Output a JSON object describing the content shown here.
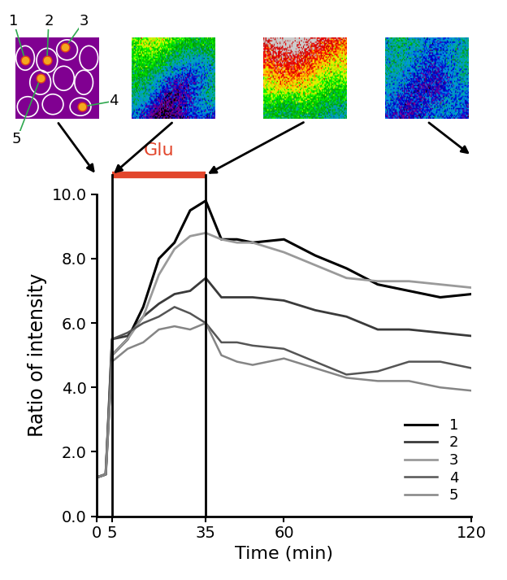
{
  "chart_data": {
    "type": "line",
    "x_label": "Time (min)",
    "y_label": "Ratio of intensity",
    "x": [
      0,
      3,
      5,
      10,
      15,
      20,
      25,
      30,
      35,
      40,
      45,
      50,
      60,
      70,
      80,
      90,
      100,
      110,
      120
    ],
    "xlim": [
      0,
      120
    ],
    "xticks": [
      0,
      5,
      35,
      60,
      120
    ],
    "ylim": [
      0,
      10
    ],
    "yticks": [
      {
        "value": 0,
        "label": "0.0"
      },
      {
        "value": 2,
        "label": "2.0"
      },
      {
        "value": 4,
        "label": "4.0"
      },
      {
        "value": 6,
        "label": "6.0"
      },
      {
        "value": 8,
        "label": "8.0"
      },
      {
        "value": 10,
        "label": "10.0"
      }
    ],
    "legend": "lower right",
    "treatment": {
      "label": "Glu",
      "start": 5,
      "end": 35,
      "color": "#e2462c"
    },
    "image_labels": [
      "1",
      "2",
      "3",
      "4",
      "5"
    ],
    "series": [
      {
        "name": "1",
        "color": "#000000",
        "line_style": "solid",
        "values": [
          1.2,
          1.3,
          5.0,
          5.5,
          6.5,
          8.0,
          8.5,
          9.5,
          9.8,
          8.6,
          8.6,
          8.5,
          8.6,
          8.1,
          7.7,
          7.2,
          7.0,
          6.8,
          6.9
        ]
      },
      {
        "name": "2",
        "color": "#3a3a3a",
        "line_style": "solid",
        "values": [
          1.2,
          1.3,
          5.5,
          5.6,
          6.2,
          6.6,
          6.9,
          7.0,
          7.4,
          6.8,
          6.8,
          6.8,
          6.7,
          6.4,
          6.2,
          5.8,
          5.8,
          5.7,
          5.6
        ]
      },
      {
        "name": "3",
        "color": "#9a9a9a",
        "line_style": "solid",
        "values": [
          1.2,
          1.3,
          5.0,
          5.5,
          6.2,
          7.5,
          8.3,
          8.7,
          8.8,
          8.6,
          8.5,
          8.5,
          8.2,
          7.8,
          7.4,
          7.3,
          7.3,
          7.2,
          7.1
        ]
      },
      {
        "name": "4",
        "color": "#555555",
        "line_style": "solid",
        "values": [
          1.2,
          1.3,
          5.5,
          5.7,
          6.0,
          6.2,
          6.5,
          6.3,
          6.0,
          5.4,
          5.4,
          5.3,
          5.2,
          4.8,
          4.4,
          4.5,
          4.8,
          4.8,
          4.6
        ]
      },
      {
        "name": "5",
        "color": "#858585",
        "line_style": "solid",
        "values": [
          1.2,
          1.3,
          4.8,
          5.2,
          5.4,
          5.8,
          5.9,
          5.8,
          6.0,
          5.0,
          4.8,
          4.7,
          4.9,
          4.6,
          4.3,
          4.2,
          4.2,
          4.0,
          3.9
        ]
      }
    ]
  }
}
